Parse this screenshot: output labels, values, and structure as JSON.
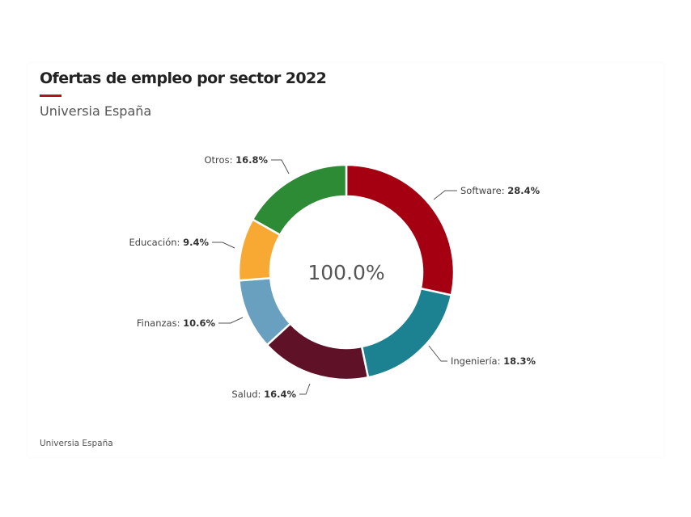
{
  "chart_data": {
    "type": "pie",
    "variant": "donut",
    "title": "Ofertas de empleo por sector 2022",
    "subtitle": "Universia España",
    "source": "Universia España",
    "center_label": "100.0%",
    "slices": [
      {
        "label": "Software",
        "value": 28.4,
        "display": "28.4%",
        "color": "#a50012"
      },
      {
        "label": "Ingeniería",
        "value": 18.3,
        "display": "18.3%",
        "color": "#1c8291"
      },
      {
        "label": "Salud",
        "value": 16.4,
        "display": "16.4%",
        "color": "#5e1127"
      },
      {
        "label": "Finanzas",
        "value": 10.6,
        "display": "10.6%",
        "color": "#6aa0bf"
      },
      {
        "label": "Educación",
        "value": 9.4,
        "display": "9.4%",
        "color": "#f7a934"
      },
      {
        "label": "Otros",
        "value": 16.8,
        "display": "16.8%",
        "color": "#2d8a35"
      }
    ],
    "legend": "none"
  },
  "accent_color": "#b5121b"
}
